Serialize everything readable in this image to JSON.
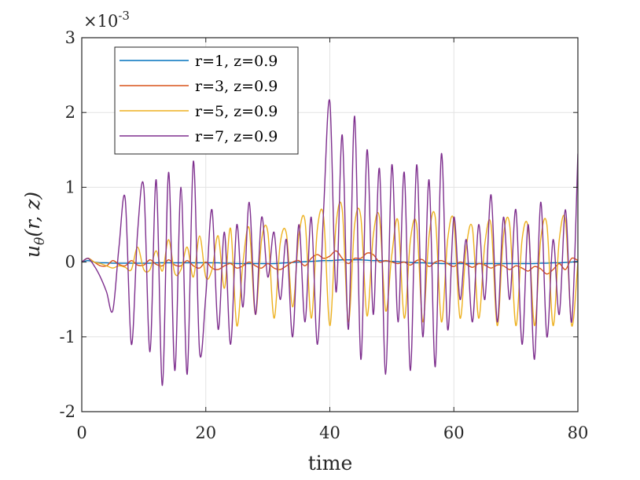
{
  "chart_data": {
    "type": "line",
    "title": "",
    "xlabel": "time",
    "ylabel": "u_θ(r, z)",
    "ylabel_parts": {
      "base": "u",
      "sub": "θ",
      "args": "(r, z)"
    },
    "exponent_label": {
      "base": "×10",
      "power": "-3"
    },
    "xlim": [
      0,
      80
    ],
    "ylim": [
      -2,
      3
    ],
    "x_ticks": [
      0,
      20,
      40,
      60,
      80
    ],
    "x_tick_labels": [
      "0",
      "20",
      "40",
      "60",
      "80"
    ],
    "y_ticks": [
      -2,
      -1,
      0,
      1,
      2,
      3
    ],
    "y_tick_labels": [
      "-2",
      "-1",
      "0",
      "1",
      "2",
      "3"
    ],
    "grid": true,
    "legend_position": "top-left",
    "x": [
      0,
      1,
      2,
      3,
      4,
      5,
      6,
      7,
      8,
      9,
      10,
      11,
      12,
      13,
      14,
      15,
      16,
      17,
      18,
      19,
      20,
      21,
      22,
      23,
      24,
      25,
      26,
      27,
      28,
      29,
      30,
      31,
      32,
      33,
      34,
      35,
      36,
      37,
      38,
      39,
      40,
      41,
      42,
      43,
      44,
      45,
      46,
      47,
      48,
      49,
      50,
      51,
      52,
      53,
      54,
      55,
      56,
      57,
      58,
      59,
      60,
      61,
      62,
      63,
      64,
      65,
      66,
      67,
      68,
      69,
      70,
      71,
      72,
      73,
      74,
      75,
      76,
      77,
      78,
      79,
      80
    ],
    "series": [
      {
        "name": "r=1, z=0.9",
        "color": "#0072BD",
        "values": [
          0,
          0.02,
          0,
          -0.01,
          -0.01,
          -0.015,
          -0.015,
          -0.015,
          -0.015,
          -0.015,
          -0.015,
          -0.015,
          -0.01,
          -0.01,
          -0.01,
          -0.01,
          -0.01,
          -0.01,
          -0.01,
          -0.01,
          -0.01,
          -0.01,
          -0.01,
          -0.015,
          -0.015,
          -0.02,
          -0.02,
          -0.02,
          -0.02,
          -0.02,
          -0.02,
          -0.02,
          -0.015,
          -0.01,
          -0.005,
          0,
          0.005,
          0.01,
          0.015,
          0.02,
          0.02,
          0.025,
          0.03,
          0.03,
          0.03,
          0.03,
          0.025,
          0.02,
          0.02,
          0.015,
          0.01,
          0.005,
          0,
          -0.005,
          -0.01,
          -0.01,
          -0.015,
          -0.015,
          -0.02,
          -0.02,
          -0.02,
          -0.02,
          -0.02,
          -0.02,
          -0.02,
          -0.02,
          -0.02,
          -0.02,
          -0.02,
          -0.02,
          -0.02,
          -0.02,
          -0.02,
          -0.02,
          -0.015,
          -0.015,
          -0.01,
          -0.01,
          -0.005,
          0,
          0.01
        ]
      },
      {
        "name": "r=3, z=0.9",
        "color": "#D95319",
        "values": [
          0,
          0.05,
          0,
          -0.05,
          -0.05,
          0.02,
          -0.03,
          -0.05,
          0.02,
          -0.04,
          -0.04,
          0.03,
          -0.03,
          -0.05,
          0.03,
          -0.04,
          -0.05,
          0.02,
          -0.05,
          -0.08,
          0,
          -0.08,
          -0.1,
          -0.05,
          -0.02,
          -0.08,
          -0.05,
          0,
          -0.05,
          -0.08,
          -0.02,
          -0.08,
          -0.1,
          -0.05,
          0,
          0.02,
          -0.05,
          0.05,
          0.1,
          0.05,
          0.08,
          0.15,
          0.05,
          -0.02,
          0.05,
          0.05,
          0.12,
          0.1,
          0,
          0.02,
          0,
          -0.02,
          0,
          -0.04,
          0.02,
          0.03,
          -0.06,
          0,
          0.02,
          -0.02,
          -0.06,
          0,
          -0.03,
          -0.07,
          -0.02,
          -0.04,
          -0.08,
          -0.04,
          -0.05,
          -0.1,
          -0.05,
          -0.08,
          -0.12,
          -0.06,
          -0.09,
          -0.16,
          -0.1,
          -0.02,
          -0.1,
          0.05,
          0.02
        ]
      },
      {
        "name": "r=5, z=0.9",
        "color": "#EDB120",
        "values": [
          0,
          0.05,
          0,
          -0.02,
          -0.05,
          -0.08,
          -0.05,
          -0.07,
          -0.1,
          0.2,
          -0.1,
          -0.1,
          0.15,
          -0.12,
          0.3,
          -0.15,
          -0.1,
          0.2,
          -0.2,
          0.35,
          -0.2,
          -0.1,
          0.35,
          -0.35,
          0.45,
          -0.85,
          0,
          0.45,
          -0.7,
          0.3,
          0.4,
          -0.75,
          0.25,
          0.38,
          -0.6,
          0.35,
          0.55,
          -0.75,
          0.45,
          0.6,
          -0.85,
          0.5,
          0.7,
          -0.8,
          0.5,
          0.6,
          -0.72,
          0.35,
          0.6,
          -0.65,
          0.1,
          0.55,
          -0.75,
          0.3,
          0.5,
          -0.8,
          0.35,
          0.6,
          -0.8,
          0.3,
          0.55,
          -0.75,
          0.2,
          0.45,
          -0.75,
          0.25,
          0.5,
          -0.85,
          0.35,
          0.5,
          -0.85,
          0.3,
          0.45,
          -0.85,
          0.3,
          0.5,
          -0.85,
          0.3,
          0.55,
          -0.85,
          0
        ]
      },
      {
        "name": "r=7, z=0.9",
        "color": "#7E2F8E",
        "values": [
          0,
          0.05,
          -0.05,
          -0.2,
          -0.4,
          -0.65,
          0.2,
          0.85,
          -1.1,
          0.4,
          1.0,
          -1.2,
          1.1,
          -1.65,
          1.2,
          -1.45,
          1.0,
          -1.5,
          1.35,
          -1.2,
          -0.45,
          0.7,
          -0.9,
          0.4,
          -1.1,
          0.5,
          -0.6,
          0.8,
          -0.7,
          0.6,
          -0.2,
          0.4,
          -0.5,
          0.3,
          -1.0,
          0.5,
          -0.8,
          0.6,
          -1.1,
          0.7,
          2.15,
          -0.4,
          1.7,
          -0.9,
          1.95,
          -1.3,
          1.5,
          -0.7,
          1.25,
          -1.5,
          1.3,
          -0.8,
          1.2,
          -1.45,
          1.3,
          -1.0,
          1.1,
          -1.4,
          1.45,
          -0.9,
          0.6,
          -0.5,
          0.3,
          -0.8,
          0.5,
          -0.5,
          0.9,
          -0.8,
          0.6,
          -0.5,
          0.7,
          -1.1,
          0.5,
          -1.3,
          0.8,
          -1.0,
          0.3,
          -0.7,
          0.7,
          -0.8,
          1.45
        ]
      }
    ]
  }
}
